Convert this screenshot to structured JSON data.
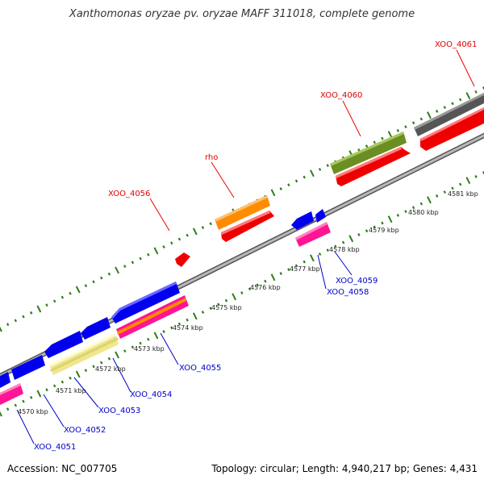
{
  "header": {
    "title": "Xanthomonas oryzae pv. oryzae MAFF 311018, complete genome"
  },
  "footer": {
    "accession": "Accession: NC_007705",
    "summary": "Topology: circular; Length: 4,940,217 bp; Genes: 4,431"
  },
  "colors": {
    "backbone": "#8c8c8c",
    "tick": "#2e7d1a",
    "forward_label": "#e00000",
    "reverse_label": "#0000cc",
    "red": "#ee0000",
    "orange": "#ff8c00",
    "olive": "#6b8e23",
    "gray": "#555555",
    "blue": "#0000ee",
    "pink": "#ff1493",
    "khaki": "#f0e68c"
  },
  "scale_labels": [
    "4570 kbp",
    "4571 kbp",
    "4572 kbp",
    "4573 kbp",
    "4574 kbp",
    "4575 kbp",
    "4576 kbp",
    "4577 kbp",
    "4578 kbp",
    "4579 kbp",
    "4580 kbp",
    "4581 kbp"
  ],
  "gene_labels": {
    "forward": [
      "XOO_4061",
      "XOO_4060",
      "rho",
      "XOO_4056"
    ],
    "reverse": [
      "XOO_4059",
      "XOO_4058",
      "XOO_4055",
      "XOO_4054",
      "XOO_4053",
      "XOO_4052",
      "XOO_4051"
    ]
  }
}
